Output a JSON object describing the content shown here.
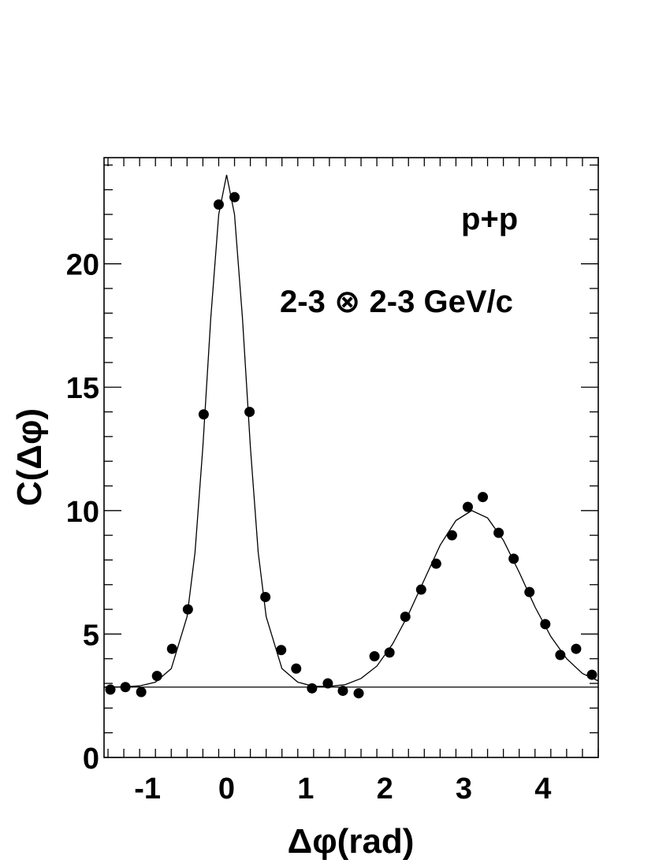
{
  "chart_data": {
    "type": "scatter",
    "title": "",
    "xlabel": "Δφ(rad)",
    "ylabel": "C(Δφ)",
    "xlim": [
      -1.55,
      4.7
    ],
    "ylim": [
      0,
      24.3
    ],
    "xticks": [
      -1,
      0,
      1,
      2,
      3,
      4
    ],
    "yticks": [
      0,
      5,
      10,
      15,
      20
    ],
    "xtick_labels": [
      "-1",
      "0",
      "1",
      "2",
      "3",
      "4"
    ],
    "ytick_labels": [
      "0",
      "5",
      "10",
      "15",
      "20"
    ],
    "grid": false,
    "annotations": [
      "p+p",
      "2-3 ⊗ 2-3 GeV/c"
    ],
    "series": [
      {
        "type": "scatter",
        "x": [
          -1.47,
          -1.28,
          -1.08,
          -0.88,
          -0.69,
          -0.49,
          -0.29,
          -0.1,
          0.1,
          0.29,
          0.49,
          0.69,
          0.88,
          1.08,
          1.28,
          1.47,
          1.67,
          1.87,
          2.06,
          2.26,
          2.46,
          2.65,
          2.85,
          3.05,
          3.24,
          3.44,
          3.63,
          3.83,
          4.03,
          4.22,
          4.42,
          4.62
        ],
        "y": [
          2.75,
          2.85,
          2.65,
          3.3,
          4.4,
          6.0,
          13.9,
          22.4,
          22.7,
          14.0,
          6.5,
          4.35,
          3.6,
          2.8,
          3.0,
          2.7,
          2.6,
          4.1,
          4.25,
          5.7,
          6.8,
          7.85,
          9.0,
          10.15,
          10.55,
          9.1,
          8.05,
          6.7,
          5.4,
          4.15,
          4.4,
          3.35
        ]
      },
      {
        "type": "line",
        "description_free": true,
        "x": [
          -1.55,
          -1.3,
          -1.1,
          -0.9,
          -0.7,
          -0.5,
          -0.4,
          -0.3,
          -0.2,
          -0.1,
          0.0,
          0.1,
          0.2,
          0.3,
          0.4,
          0.5,
          0.7,
          0.9,
          1.1,
          1.3,
          1.5,
          1.7,
          1.9,
          2.1,
          2.3,
          2.5,
          2.7,
          2.9,
          3.1,
          3.3,
          3.5,
          3.7,
          3.9,
          4.1,
          4.3,
          4.5,
          4.7
        ],
        "y": [
          2.85,
          2.86,
          2.9,
          3.05,
          3.6,
          5.7,
          8.3,
          12.6,
          17.8,
          22.0,
          23.6,
          22.0,
          17.8,
          12.6,
          8.3,
          5.7,
          3.6,
          3.05,
          2.88,
          2.88,
          2.95,
          3.2,
          3.7,
          4.6,
          5.8,
          7.2,
          8.6,
          9.6,
          10.0,
          9.7,
          8.8,
          7.5,
          6.1,
          4.9,
          4.0,
          3.4,
          3.1
        ]
      },
      {
        "type": "line",
        "x": [
          -1.55,
          4.7
        ],
        "y": [
          2.85,
          2.85
        ]
      }
    ]
  }
}
